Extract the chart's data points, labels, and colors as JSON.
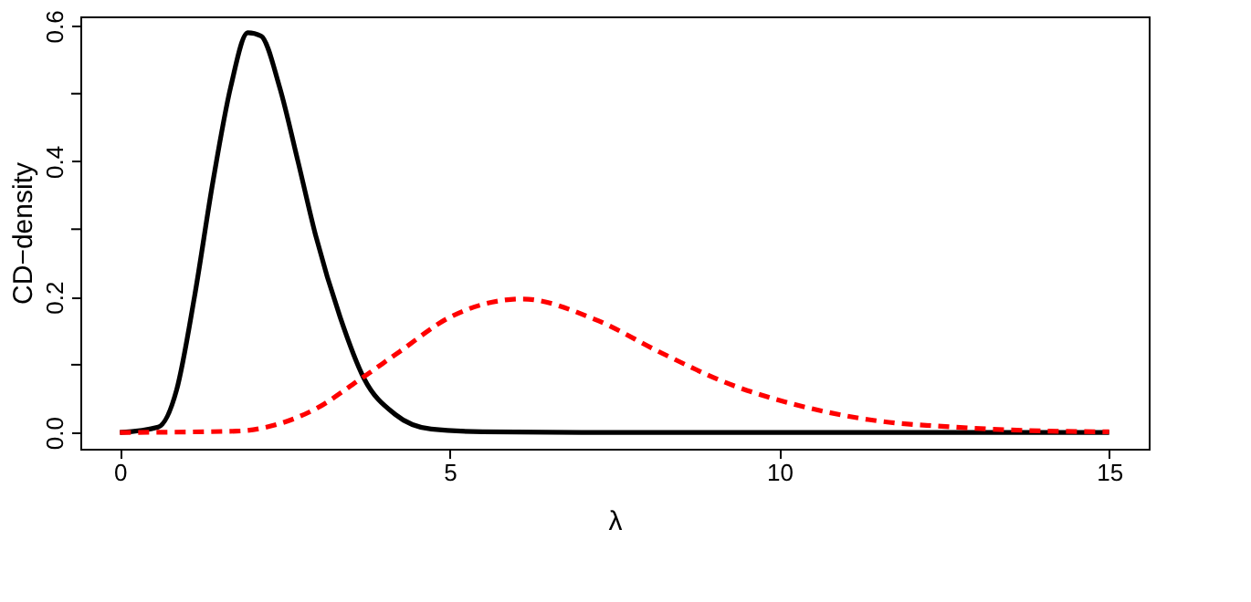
{
  "chart_data": {
    "type": "line",
    "xlabel": "λ",
    "ylabel": "CD−density",
    "xlim": [
      -0.6,
      15.6
    ],
    "ylim": [
      -0.024,
      0.614
    ],
    "xticks": [
      0,
      5,
      10,
      15
    ],
    "yticks": [
      {
        "value": 0,
        "label": "0.0"
      },
      {
        "value": 0.1,
        "label": null
      },
      {
        "value": 0.2,
        "label": "0.2"
      },
      {
        "value": 0.3,
        "label": null
      },
      {
        "value": 0.4,
        "label": "0.4"
      },
      {
        "value": 0.5,
        "label": null
      },
      {
        "value": 0.6,
        "label": "0.6"
      }
    ],
    "grid": false,
    "marker": "none",
    "series": [
      {
        "color": "#000000",
        "line_style": "solid",
        "x": [
          0,
          0.58,
          0.86,
          1.13,
          1.41,
          1.68,
          1.94,
          2.14,
          2.42,
          2.7,
          2.97,
          3.34,
          3.7,
          4.17,
          4.72,
          5.5,
          7,
          10,
          15
        ],
        "values": [
          0,
          0.008,
          0.063,
          0.2,
          0.37,
          0.51,
          0.59,
          0.585,
          0.51,
          0.4,
          0.29,
          0.17,
          0.08,
          0.027,
          0.005,
          0.001,
          0,
          0,
          0
        ]
      },
      {
        "color": "#ff0000",
        "line_style": "dashed",
        "x": [
          0,
          1.77,
          2.42,
          2.97,
          3.62,
          4.25,
          5.0,
          6.1,
          7.2,
          8.22,
          9.23,
          10.25,
          11.35,
          12.64,
          13.75,
          15
        ],
        "values": [
          0,
          0.002,
          0.013,
          0.035,
          0.077,
          0.12,
          0.17,
          0.197,
          0.167,
          0.117,
          0.072,
          0.041,
          0.019,
          0.008,
          0.003,
          0.001
        ]
      }
    ]
  }
}
